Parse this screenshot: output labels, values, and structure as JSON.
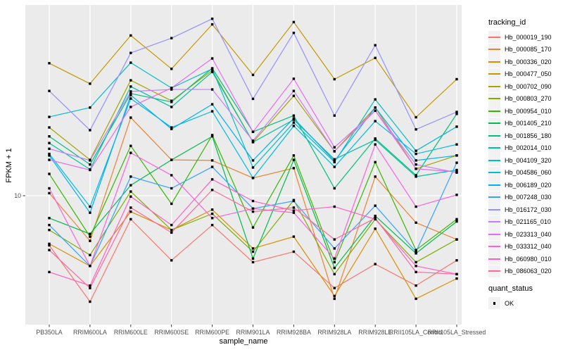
{
  "axes": {
    "y_title": "FPKM + 1",
    "x_title": "sample_name",
    "y_tick_labels": [
      "10"
    ]
  },
  "legend": {
    "tracking_title": "tracking_id",
    "quant_title": "quant_status",
    "quant_items": [
      {
        "label": "OK",
        "marker": "black-square"
      }
    ],
    "key_bg": "#F2F2F2"
  },
  "style": {
    "panel_bg": "#EBEBEB",
    "grid_color": "#FFFFFF",
    "tick_color": "#333333",
    "tick_text_color": "#4D4D4D",
    "point_color": "#000000"
  },
  "chart_data": {
    "type": "line",
    "title": "",
    "xlabel": "sample_name",
    "ylabel": "FPKM + 1",
    "yscale": "log10",
    "ylim": [
      2.2,
      94
    ],
    "yticks": [
      10
    ],
    "grid": "major-only",
    "legend_position": "right",
    "point_shape": "filled-square",
    "x": [
      "PB350LA",
      "RRIM600LA",
      "RRIM600LE",
      "RRIM600SE",
      "RRIM600PE",
      "RRIM901LA",
      "RRIM928BA",
      "RRIM928LA",
      "RRIM928LE",
      "RRII105LA_Control",
      "RRII105LA_Stressed"
    ],
    "series": [
      {
        "name": "Hb_000019_190",
        "color": "#F8766D",
        "values": [
          5.6,
          2.9,
          7.6,
          4.7,
          7.1,
          4.6,
          5.2,
          3.4,
          4.5,
          3.5,
          4.7
        ]
      },
      {
        "name": "Hb_000085_170",
        "color": "#EA8331",
        "values": [
          10.3,
          5.9,
          24.9,
          15.2,
          15.1,
          12.3,
          13.8,
          3.0,
          12.5,
          7.3,
          6.0
        ]
      },
      {
        "name": "Hb_000336_020",
        "color": "#D89000",
        "values": [
          5.7,
          4.4,
          8.3,
          6.7,
          8.5,
          5.4,
          6.2,
          3.1,
          6.8,
          3.0,
          3.8
        ]
      },
      {
        "name": "Hb_000477_050",
        "color": "#C09B00",
        "values": [
          47,
          37,
          65,
          44,
          74,
          41,
          76,
          39,
          50,
          25,
          39
        ]
      },
      {
        "name": "Hb_000702_090",
        "color": "#A3A500",
        "values": [
          22.2,
          15.2,
          38.5,
          30.3,
          43.2,
          18.7,
          32.1,
          16.8,
          28,
          13.7,
          16
        ]
      },
      {
        "name": "Hb_000803_270",
        "color": "#7CAE00",
        "values": [
          6.7,
          5.0,
          10.5,
          6.7,
          8.1,
          5.2,
          9.5,
          4.0,
          7.6,
          4.6,
          6.0
        ]
      },
      {
        "name": "Hb_000954_010",
        "color": "#39B600",
        "values": [
          12.9,
          6.2,
          17.9,
          9.1,
          20.3,
          6.9,
          16,
          4.6,
          14.8,
          5.3,
          7.6
        ]
      },
      {
        "name": "Hb_001405_210",
        "color": "#00BB4E",
        "values": [
          7.7,
          6.4,
          11.3,
          15.2,
          20,
          4.8,
          15.2,
          4.3,
          7.9,
          5.1,
          7.4
        ]
      },
      {
        "name": "Hb_001856_180",
        "color": "#00BF7D",
        "values": [
          20,
          14.4,
          33,
          29.9,
          44.3,
          21.1,
          25.5,
          10.9,
          19.5,
          12.7,
          26
        ]
      },
      {
        "name": "Hb_002014_010",
        "color": "#00C1A3",
        "values": [
          18.5,
          13.6,
          35.8,
          28.2,
          42.5,
          18.7,
          24.3,
          15.3,
          19.2,
          12.5,
          13.5
        ]
      },
      {
        "name": "Hb_004109_320",
        "color": "#00BFC4",
        "values": [
          25.1,
          28,
          47.3,
          35.2,
          44,
          13.9,
          23.5,
          14.8,
          30.8,
          16.9,
          22.4
        ]
      },
      {
        "name": "Hb_004586_060",
        "color": "#00BAE0",
        "values": [
          16.3,
          8.8,
          31.1,
          22.2,
          26.8,
          12.3,
          22.6,
          14,
          23.9,
          16.3,
          18.2
        ]
      },
      {
        "name": "Hb_006189_020",
        "color": "#00B0F6",
        "values": [
          16,
          8.2,
          32.4,
          21.8,
          29.1,
          15.1,
          24.7,
          15,
          28,
          15.1,
          16
        ]
      },
      {
        "name": "Hb_007248_030",
        "color": "#35A2FF",
        "values": [
          7.1,
          4.4,
          12.5,
          10.9,
          14,
          8.6,
          9.4,
          5.4,
          8.9,
          5.2,
          14.7
        ]
      },
      {
        "name": "Hb_016172_030",
        "color": "#9590FF",
        "values": [
          34,
          21.5,
          53,
          63,
          79,
          31,
          67,
          25.5,
          58,
          21.7,
          26.6
        ]
      },
      {
        "name": "Hb_021165_010",
        "color": "#C77CFF",
        "values": [
          17.3,
          15.1,
          33.8,
          34.6,
          34.6,
          19,
          34,
          16.8,
          27,
          14.4,
          13.1
        ]
      },
      {
        "name": "Hb_023313_040",
        "color": "#E76BF3",
        "values": [
          15.2,
          13.5,
          28.2,
          35.2,
          49.7,
          21.1,
          39.2,
          17.6,
          27,
          13.7,
          13.2
        ]
      },
      {
        "name": "Hb_033312_040",
        "color": "#FA62DB",
        "values": [
          10.9,
          4.4,
          16.5,
          12.7,
          7.7,
          8.6,
          8.2,
          4.8,
          18.2,
          8.8,
          10.1
        ]
      },
      {
        "name": "Hb_060980_010",
        "color": "#FF61C3",
        "values": [
          4.1,
          3.5,
          9.9,
          7.1,
          12.1,
          9.4,
          8.4,
          8.8,
          7.6,
          4.4,
          4.0
        ]
      },
      {
        "name": "Hb_086063_020",
        "color": "#FF689F",
        "values": [
          5.3,
          3.4,
          8.7,
          6.5,
          10.7,
          8.3,
          8.7,
          6.0,
          7.7,
          4.1,
          4.0
        ]
      }
    ]
  }
}
